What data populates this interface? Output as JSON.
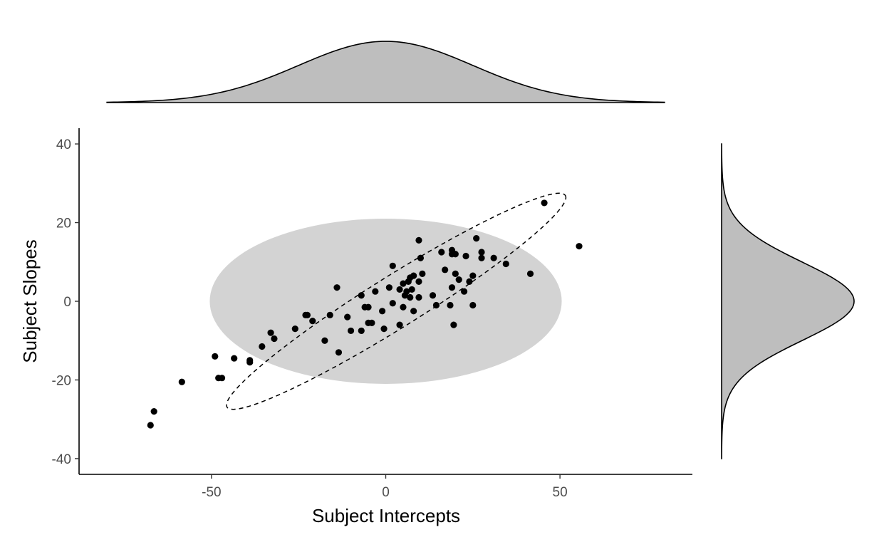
{
  "chart_data": {
    "type": "scatter",
    "title": "",
    "xlabel": "Subject Intercepts",
    "ylabel": "Subject Slopes",
    "xlim": [
      -88,
      88
    ],
    "ylim": [
      -44,
      44
    ],
    "x_ticks": [
      -50,
      0,
      50
    ],
    "y_ticks": [
      -40,
      -20,
      0,
      20,
      40
    ],
    "grid": false,
    "legend": "none",
    "colors": {
      "points": "#000000",
      "ellipse_fill": "#d3d3d3",
      "density_fill": "#bebebe",
      "ellipse_outline": "#000000"
    },
    "points": [
      [
        45.5,
        25
      ],
      [
        55.5,
        14
      ],
      [
        26,
        16
      ],
      [
        9.5,
        15.5
      ],
      [
        19,
        13
      ],
      [
        16,
        12.5
      ],
      [
        19,
        12
      ],
      [
        20,
        12
      ],
      [
        23,
        11.5
      ],
      [
        27.5,
        12.5
      ],
      [
        27.5,
        11
      ],
      [
        31,
        11
      ],
      [
        34.5,
        9.5
      ],
      [
        10,
        11
      ],
      [
        2,
        9
      ],
      [
        17,
        8
      ],
      [
        41.5,
        7
      ],
      [
        20,
        7
      ],
      [
        25,
        6.5
      ],
      [
        10.5,
        7
      ],
      [
        8,
        6.5
      ],
      [
        7,
        6
      ],
      [
        6.5,
        5
      ],
      [
        5,
        4.5
      ],
      [
        21,
        5.5
      ],
      [
        24,
        5
      ],
      [
        9.5,
        5
      ],
      [
        19,
        3.5
      ],
      [
        1,
        3.5
      ],
      [
        4,
        3
      ],
      [
        7.5,
        3
      ],
      [
        6,
        2.5
      ],
      [
        -3,
        2.5
      ],
      [
        22.5,
        2.5
      ],
      [
        9.5,
        1
      ],
      [
        13.5,
        1.5
      ],
      [
        7,
        1
      ],
      [
        5.5,
        1.5
      ],
      [
        -7,
        1.5
      ],
      [
        -14,
        3.5
      ],
      [
        2,
        -0.5
      ],
      [
        14.5,
        -1
      ],
      [
        18.5,
        -1
      ],
      [
        25,
        -1
      ],
      [
        -6,
        -1.5
      ],
      [
        -5,
        -1.5
      ],
      [
        5,
        -1.5
      ],
      [
        -1,
        -2.5
      ],
      [
        8,
        -2.5
      ],
      [
        -23,
        -3.5
      ],
      [
        -22.5,
        -3.5
      ],
      [
        -16,
        -3.5
      ],
      [
        -11,
        -4
      ],
      [
        -21,
        -5
      ],
      [
        -4,
        -5.5
      ],
      [
        -5,
        -5.5
      ],
      [
        4,
        -6
      ],
      [
        19.5,
        -6
      ],
      [
        -26,
        -7
      ],
      [
        -7,
        -7.5
      ],
      [
        -10,
        -7.5
      ],
      [
        -0.5,
        -7
      ],
      [
        -33,
        -8
      ],
      [
        -32,
        -9.5
      ],
      [
        -17.5,
        -10
      ],
      [
        -35.5,
        -11.5
      ],
      [
        -13.5,
        -13
      ],
      [
        -49,
        -14
      ],
      [
        -43.5,
        -14.5
      ],
      [
        -39,
        -15
      ],
      [
        -39,
        -15.5
      ],
      [
        -48,
        -19.5
      ],
      [
        -47,
        -19.5
      ],
      [
        -58.5,
        -20.5
      ],
      [
        -66.5,
        -28
      ],
      [
        -67.5,
        -31.5
      ]
    ],
    "background_ellipse": {
      "center": [
        0,
        0
      ],
      "x_radius": 50.5,
      "y_radius": 21
    },
    "dashed_ellipse": {
      "center": [
        3,
        0
      ],
      "x_radius": 55.5,
      "y_radius": 6.7,
      "angle_deg": 29
    },
    "top_density": {
      "mean": 0,
      "sd": 25,
      "x_range": [
        -80,
        80
      ]
    },
    "right_density": {
      "mean": 0,
      "sd": 10,
      "y_range": [
        -40,
        40
      ]
    }
  }
}
